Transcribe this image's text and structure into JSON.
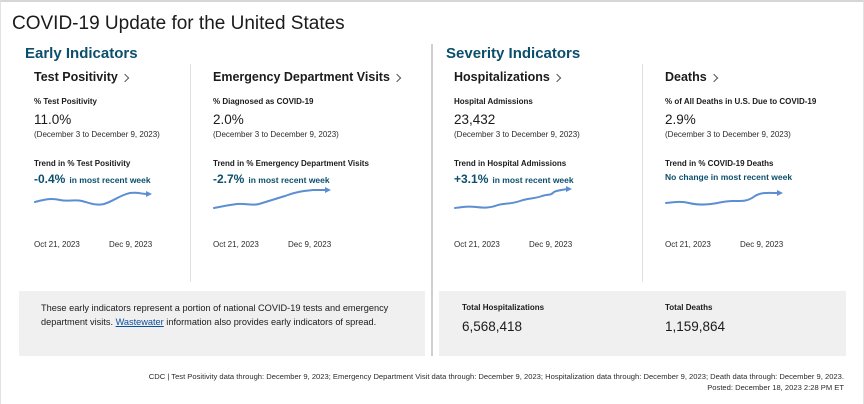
{
  "page_title": "COVID-19 Update for the United States",
  "sections": {
    "early": "Early Indicators",
    "severity": "Severity Indicators"
  },
  "cards": [
    {
      "title": "Test Positivity",
      "metric_label": "% Test Positivity",
      "value": "11.0%",
      "range": "(December 3 to December 9, 2023)",
      "trend_label": "Trend in % Test Positivity",
      "trend_value": "-0.4%",
      "trend_text": "in most recent week",
      "date_start": "Oct 21, 2023",
      "date_end": "Dec 9, 2023"
    },
    {
      "title": "Emergency Department Visits",
      "metric_label": "% Diagnosed as COVID-19",
      "value": "2.0%",
      "range": "(December 3 to December 9, 2023)",
      "trend_label": "Trend in % Emergency Department Visits",
      "trend_value": "-2.7%",
      "trend_text": "in most recent week",
      "date_start": "Oct 21, 2023",
      "date_end": "Dec 9, 2023"
    },
    {
      "title": "Hospitalizations",
      "metric_label": "Hospital Admissions",
      "value": "23,432",
      "range": "(December 3 to December 9, 2023)",
      "trend_label": "Trend in Hospital Admissions",
      "trend_value": "+3.1%",
      "trend_text": "in most recent week",
      "date_start": "Oct 21, 2023",
      "date_end": "Dec 9, 2023"
    },
    {
      "title": "Deaths",
      "metric_label": "% of All Deaths in U.S. Due to COVID-19",
      "value": "2.9%",
      "range": "(December 3 to December 9, 2023)",
      "trend_label": "Trend in % COVID-19 Deaths",
      "trend_value": "",
      "trend_text": "No change in most recent week",
      "date_start": "Oct 21, 2023",
      "date_end": "Dec 9, 2023"
    }
  ],
  "note": {
    "before": "These early indicators represent a portion of national COVID-19 tests and emergency department visits. ",
    "link": "Wastewater",
    "after": " information also provides early indicators of spread."
  },
  "totals": {
    "hosp_label": "Total Hospitalizations",
    "hosp_value": "6,568,418",
    "deaths_label": "Total Deaths",
    "deaths_value": "1,159,864"
  },
  "footer": {
    "line1": "CDC | Test Positivity data through: December 9, 2023; Emergency Department Visit data through: December 9, 2023; Hospitalization data through: December 9, 2023; Death data through: December 9, 2023.",
    "line2": "Posted: December 18, 2023 2:28 PM ET"
  },
  "colors": {
    "accent": "#0b4f6c",
    "sparkline": "#5b8fd1",
    "panel_bg": "#f0f0f0"
  }
}
